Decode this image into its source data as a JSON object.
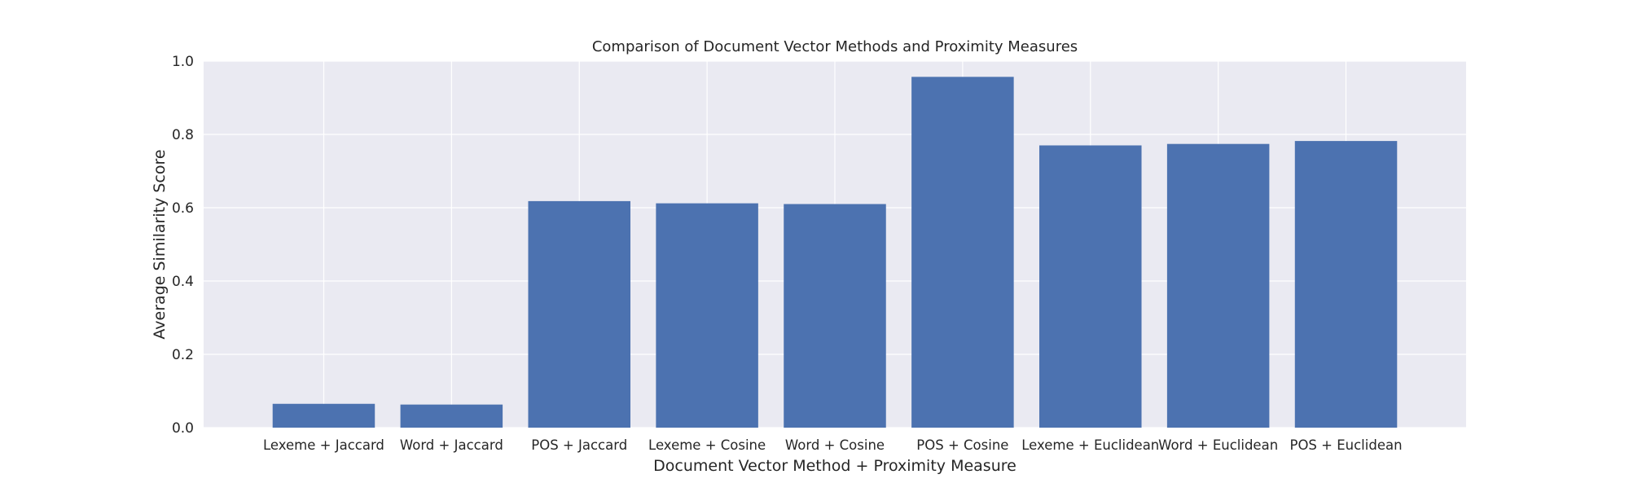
{
  "chart_data": {
    "type": "bar",
    "title": "Comparison of Document Vector Methods and Proximity Measures",
    "xlabel": "Document Vector Method + Proximity Measure",
    "ylabel": "Average Similarity Score",
    "ylim": [
      0,
      1.0
    ],
    "yticks": [
      "0.0",
      "0.2",
      "0.4",
      "0.6",
      "0.8",
      "1.0"
    ],
    "grid": true,
    "categories": [
      "Lexeme + Jaccard",
      "Word + Jaccard",
      "POS + Jaccard",
      "Lexeme + Cosine",
      "Word + Cosine",
      "POS + Cosine",
      "Lexeme + Euclidean",
      "Word + Euclidean",
      "POS + Euclidean"
    ],
    "values": [
      0.065,
      0.063,
      0.618,
      0.612,
      0.61,
      0.957,
      0.77,
      0.774,
      0.782
    ],
    "bar_color": "#4c72b0",
    "plot_background": "#eaeaf2",
    "grid_color": "#ffffff"
  }
}
